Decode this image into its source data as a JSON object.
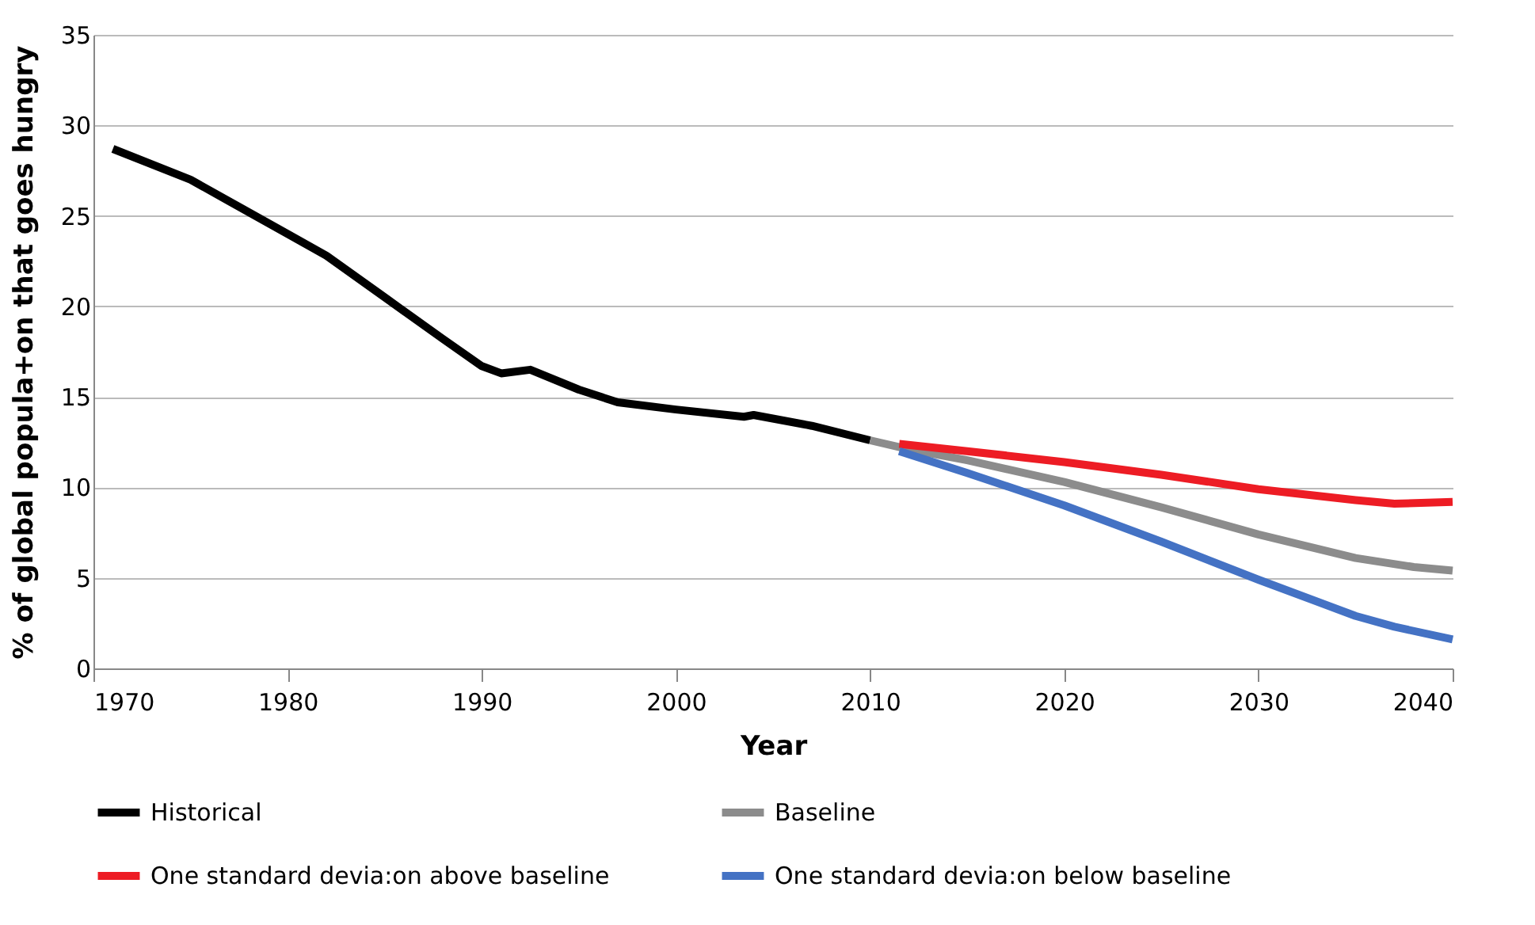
{
  "chart_data": {
    "type": "line",
    "xlabel": "Year",
    "ylabel": "% of global popula+on that goes hungry",
    "xlim": [
      1970,
      2040
    ],
    "xticks": [
      1970,
      1980,
      1990,
      2000,
      2010,
      2020,
      2030,
      2040
    ],
    "ylim": [
      0,
      35
    ],
    "yticks": [
      0,
      5,
      10,
      15,
      20,
      25,
      30,
      35
    ],
    "grid": "y",
    "legend": "bottom",
    "line_style": "solid",
    "marker": "none",
    "series": [
      {
        "name": "Historical",
        "color": "#000000",
        "x": [
          1971,
          1975,
          1980,
          1982,
          1985,
          1988,
          1990,
          1991,
          1992.5,
          1995,
          1997,
          2000,
          2003.5,
          2004,
          2007,
          2010
        ],
        "values": [
          28.7,
          27.0,
          24.0,
          22.8,
          20.5,
          18.2,
          16.7,
          16.3,
          16.5,
          15.4,
          14.7,
          14.3,
          13.9,
          14.0,
          13.4,
          12.6
        ]
      },
      {
        "name": "Baseline",
        "color": "#8c8c8c",
        "x": [
          2010,
          2012,
          2015,
          2020,
          2025,
          2030,
          2035,
          2038,
          2040
        ],
        "values": [
          12.6,
          12.1,
          11.5,
          10.3,
          8.9,
          7.4,
          6.1,
          5.6,
          5.4
        ]
      },
      {
        "name": "One standard devia:on above baseline",
        "color": "#ed1c24",
        "x": [
          2011.5,
          2015,
          2020,
          2025,
          2030,
          2035,
          2037,
          2040
        ],
        "values": [
          12.4,
          12.0,
          11.4,
          10.7,
          9.9,
          9.3,
          9.1,
          9.2
        ]
      },
      {
        "name": "One standard devia:on below baseline",
        "color": "#4472c4",
        "x": [
          2011.5,
          2015,
          2020,
          2025,
          2030,
          2035,
          2037,
          2040
        ],
        "values": [
          12.0,
          10.8,
          9.0,
          7.0,
          4.9,
          2.9,
          2.3,
          1.6
        ]
      }
    ]
  }
}
